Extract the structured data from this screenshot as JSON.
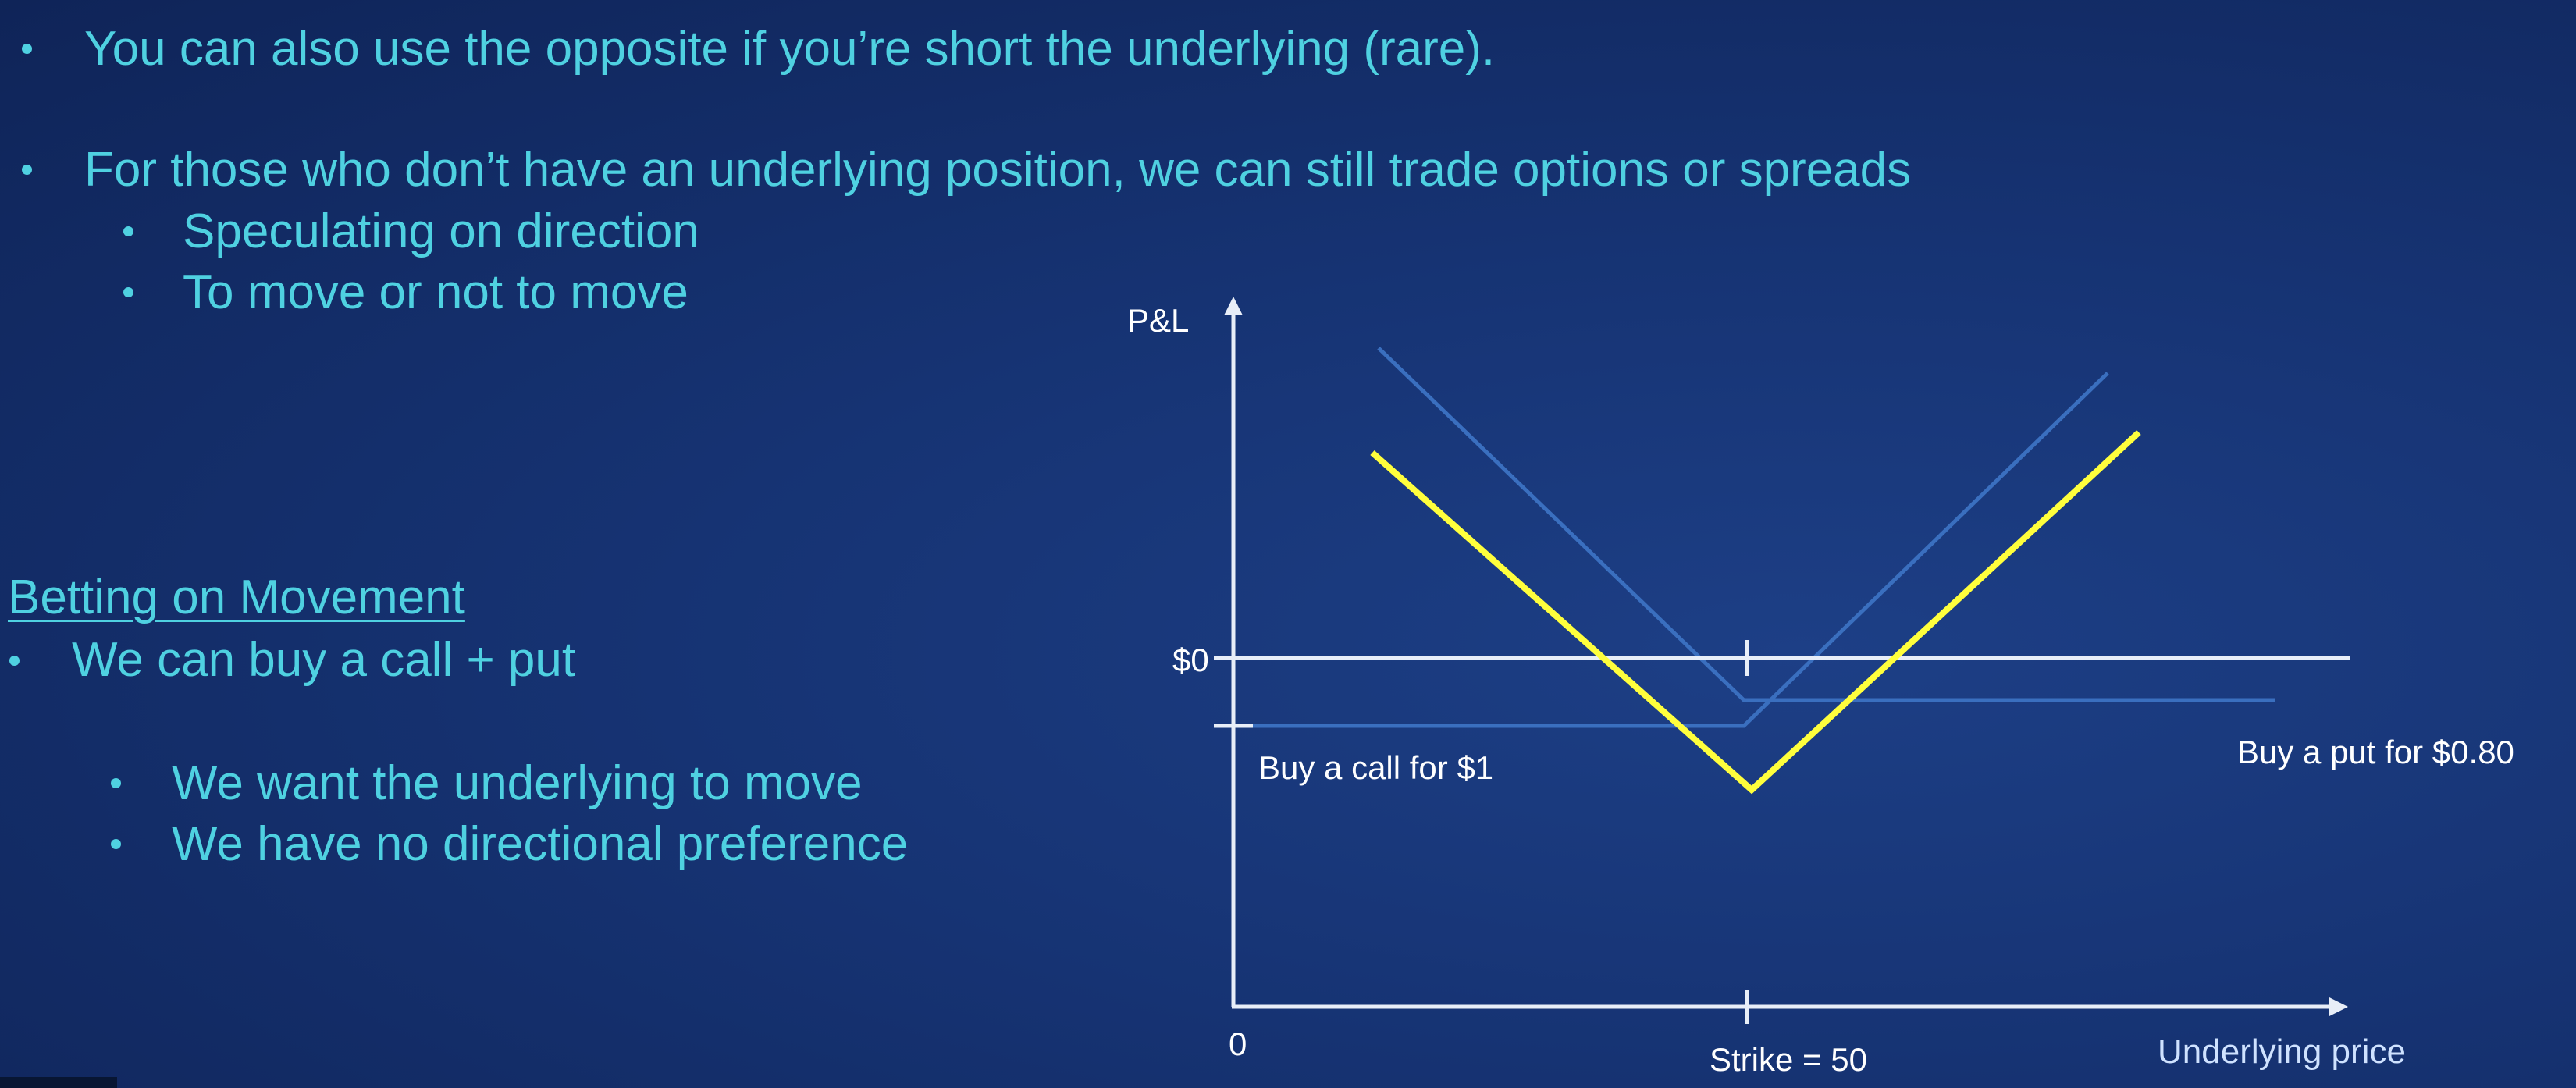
{
  "slide": {
    "bullets_top": [
      "You can also use the opposite if you’re short the underlying (rare).",
      "For those who don’t have an underlying position, we can still trade options or spreads"
    ],
    "sub_bullets_top": [
      "Speculating on direction",
      "To move or not to move"
    ],
    "section_heading": "Betting on Movement",
    "section_bullet": "We can buy a call + put",
    "section_sub_bullets": [
      "We want the underlying to move",
      "We have no directional preference"
    ]
  },
  "diagram": {
    "y_axis_label": "P&L",
    "x_axis_label": "Underlying price",
    "zero_pl_label": "$0",
    "origin_label": "0",
    "strike_label": "Strike = 50",
    "call_label": "Buy a call for $1",
    "put_label": "Buy a put for $0.80",
    "colors": {
      "straddle": "#ffff3c",
      "components": "#3a6fbf",
      "axes": "#e8eef8",
      "text": "#4fd1e1"
    }
  }
}
